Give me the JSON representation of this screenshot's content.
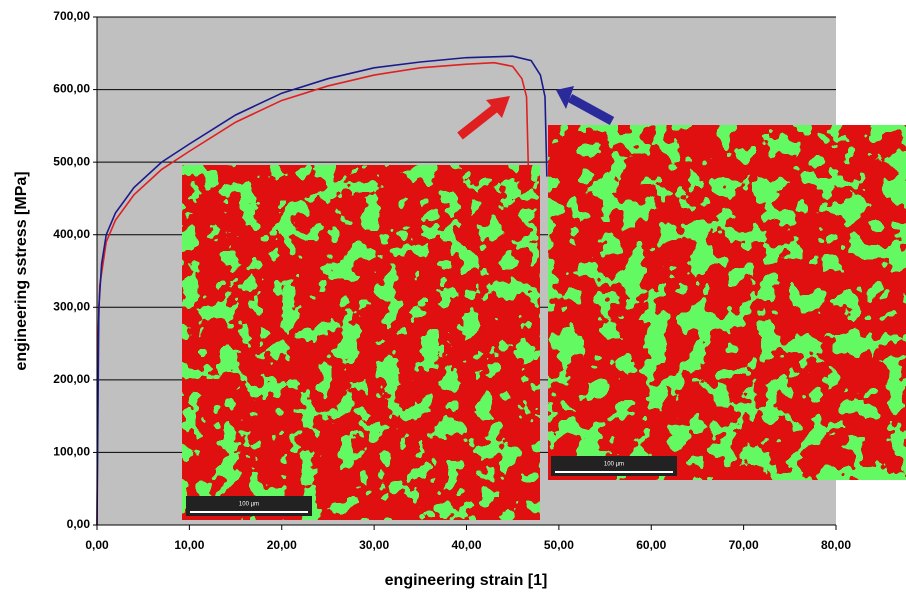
{
  "chart_data": {
    "type": "line",
    "x_label": "engineering strain [1]",
    "y_label": "engineering sstress [MPa]",
    "xlim": [
      0,
      80
    ],
    "ylim": [
      0,
      700
    ],
    "xticks": [
      {
        "value": 0,
        "label": "0,00"
      },
      {
        "value": 10,
        "label": "10,00"
      },
      {
        "value": 20,
        "label": "20,00"
      },
      {
        "value": 30,
        "label": "30,00"
      },
      {
        "value": 40,
        "label": "40,00"
      },
      {
        "value": 50,
        "label": "50,00"
      },
      {
        "value": 60,
        "label": "60,00"
      },
      {
        "value": 70,
        "label": "70,00"
      },
      {
        "value": 80,
        "label": "80,00"
      }
    ],
    "yticks": [
      {
        "value": 0,
        "label": "0,00"
      },
      {
        "value": 100,
        "label": "100,00"
      },
      {
        "value": 200,
        "label": "200,00"
      },
      {
        "value": 300,
        "label": "300,00"
      },
      {
        "value": 400,
        "label": "400,00"
      },
      {
        "value": 500,
        "label": "500,00"
      },
      {
        "value": 600,
        "label": "600,00"
      },
      {
        "value": 700,
        "label": "700,00"
      }
    ],
    "grid": true,
    "series": [
      {
        "color": "#e02020",
        "x": [
          0,
          0.1,
          0.3,
          1,
          2,
          4,
          7,
          10,
          15,
          20,
          25,
          30,
          35,
          40,
          43,
          45,
          46,
          46.5,
          46.7
        ],
        "values": [
          0,
          250,
          330,
          390,
          420,
          455,
          490,
          515,
          555,
          585,
          605,
          620,
          630,
          635,
          637,
          632,
          615,
          590,
          490
        ]
      },
      {
        "color": "#1a1a8c",
        "x": [
          0,
          0.2,
          0.5,
          1,
          2,
          4,
          7,
          10,
          15,
          20,
          25,
          30,
          35,
          40,
          45,
          47,
          48,
          48.5,
          48.7
        ],
        "values": [
          0,
          300,
          360,
          400,
          430,
          465,
          500,
          525,
          565,
          595,
          615,
          630,
          638,
          644,
          646,
          640,
          620,
          590,
          480
        ]
      }
    ],
    "inset_scale_labels": [
      "100 µm",
      "100 µm"
    ]
  }
}
